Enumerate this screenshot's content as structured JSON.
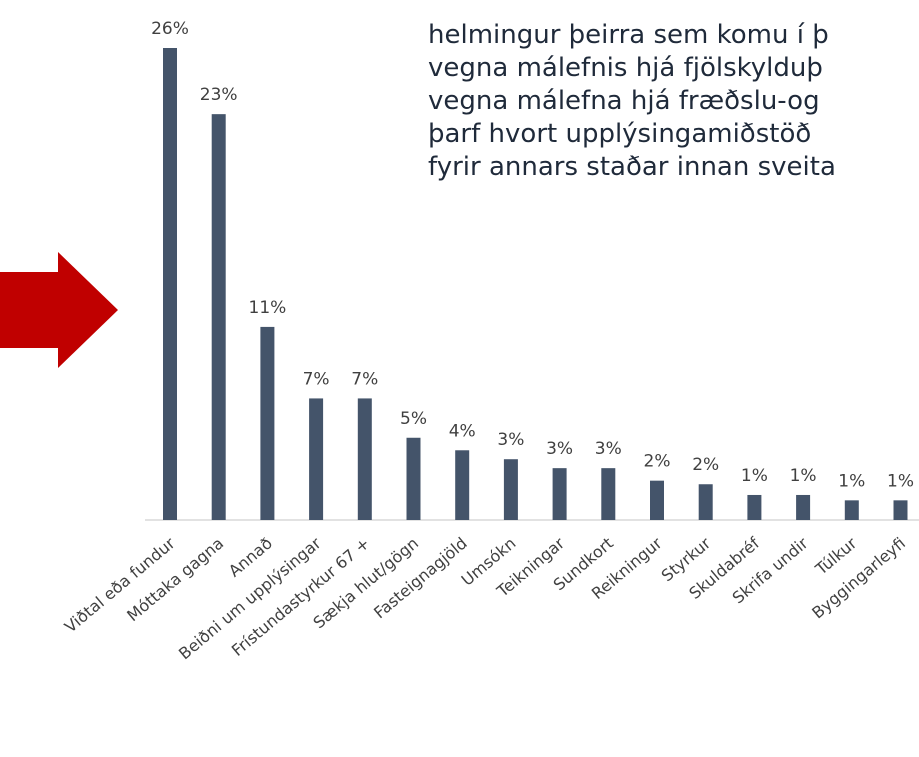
{
  "chart_data": {
    "type": "bar",
    "categories": [
      "Viðtal eða fundur",
      "Móttaka gagna",
      "Annað",
      "Beiðni um upplýsingar",
      "Frístundastyrkur 67 +",
      "Sækja hlut/gögn",
      "Fasteignagjöld",
      "Umsókn",
      "Teikningar",
      "Sundkort",
      "Reikningur",
      "Styrkur",
      "Skuldabréf",
      "Skrifa undir",
      "Túlkur",
      "Byggingarleyfi"
    ],
    "values": [
      26.4,
      22.7,
      10.8,
      6.8,
      6.8,
      4.6,
      3.9,
      3.4,
      2.9,
      2.9,
      2.2,
      2.0,
      1.4,
      1.4,
      1.1,
      1.1
    ],
    "value_labels": [
      "26%",
      "23%",
      "11%",
      "7%",
      "7%",
      "5%",
      "4%",
      "3%",
      "3%",
      "3%",
      "2%",
      "2%",
      "1%",
      "1%",
      "1%",
      "1%"
    ],
    "color": "#44546a"
  },
  "text": {
    "lines": [
      "helmingur þeirra sem komu í þ",
      "vegna málefnis hjá fjölskylduþ",
      "vegna málefna hjá fræðslu-og",
      "þarf hvort upplýsingamiðstöð",
      "fyrir annars staðar innan sveita"
    ]
  }
}
